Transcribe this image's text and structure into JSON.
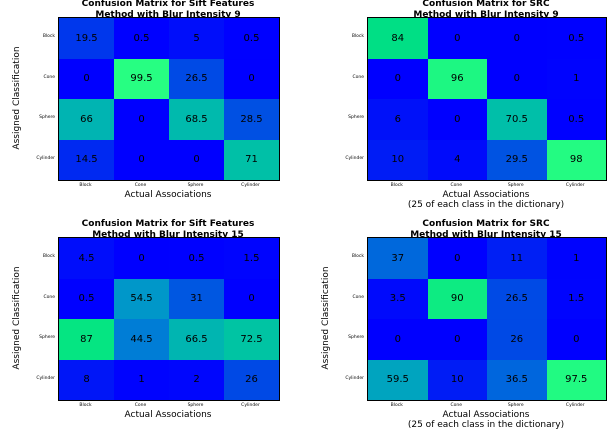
{
  "chart_data": [
    {
      "type": "heatmap",
      "title": "Confusion Matrix for Sift Features\nMethod with Blur Intensity 9",
      "xlabel": "Actual Associations",
      "xlabel_sub": "",
      "ylabel": "Assigned Classification",
      "categories": [
        "Block",
        "Cone",
        "Sphere",
        "Cylinder"
      ],
      "rows": [
        "Block",
        "Cone",
        "Sphere",
        "Cylinder"
      ],
      "values": [
        [
          19.5,
          0.5,
          5,
          0.5
        ],
        [
          0,
          99.5,
          26.5,
          0
        ],
        [
          66,
          0,
          68.5,
          28.5
        ],
        [
          14.5,
          0,
          0,
          71
        ]
      ],
      "vrange": [
        0,
        100
      ],
      "colormap": "jet"
    },
    {
      "type": "heatmap",
      "title": "Confusion Matrix for SRC\nMethod with Blur Intensity 9",
      "xlabel": "Actual Associations",
      "xlabel_sub": "(25 of each class in the dictionary)",
      "ylabel": "",
      "categories": [
        "Block",
        "Cone",
        "Sphere",
        "Cylinder"
      ],
      "rows": [
        "Block",
        "Cone",
        "Sphere",
        "Cylinder"
      ],
      "values": [
        [
          84,
          0,
          0,
          0.5
        ],
        [
          0,
          96,
          0,
          1
        ],
        [
          6,
          0,
          70.5,
          0.5
        ],
        [
          10,
          4,
          29.5,
          98
        ]
      ],
      "vrange": [
        0,
        100
      ],
      "colormap": "jet"
    },
    {
      "type": "heatmap",
      "title": "Confusion Matrix for Sift Features\nMethod with Blur Intensity 15",
      "xlabel": "Actual Associations",
      "xlabel_sub": "",
      "ylabel": "Assigned Classification",
      "categories": [
        "Block",
        "Cone",
        "Sphere",
        "Cylinder"
      ],
      "rows": [
        "Block",
        "Cone",
        "Sphere",
        "Cylinder"
      ],
      "values": [
        [
          4.5,
          0,
          0.5,
          1.5
        ],
        [
          0.5,
          54.5,
          31,
          0
        ],
        [
          87,
          44.5,
          66.5,
          72.5
        ],
        [
          8,
          1,
          2,
          26
        ]
      ],
      "vrange": [
        0,
        100
      ],
      "colormap": "jet"
    },
    {
      "type": "heatmap",
      "title": "Confusion Matrix for SRC\nMethod with Blur Intensity 15",
      "xlabel": "Actual Associations",
      "xlabel_sub": "(25 of each class in the dictionary)",
      "ylabel": "Assigned Classification",
      "categories": [
        "Block",
        "Cone",
        "Sphere",
        "Cylinder"
      ],
      "rows": [
        "Block",
        "Cone",
        "Sphere",
        "Cylinder"
      ],
      "values": [
        [
          37,
          0,
          11,
          1
        ],
        [
          3.5,
          90,
          26.5,
          1.5
        ],
        [
          0,
          0,
          26,
          0
        ],
        [
          59.5,
          10,
          36.5,
          97.5
        ]
      ],
      "vrange": [
        0,
        100
      ],
      "colormap": "jet"
    }
  ]
}
